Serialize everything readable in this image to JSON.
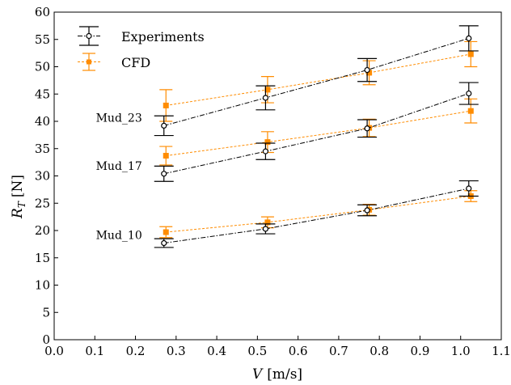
{
  "chart_data": {
    "type": "line",
    "xlabel": "V [m/s]",
    "ylabel": "R_T [N]",
    "ylabel_main": "R",
    "ylabel_sub": "T",
    "ylabel_unit": "[N]",
    "xlabel_main": "V",
    "xlabel_unit": "[m/s]",
    "xlim": [
      0.0,
      1.1
    ],
    "ylim": [
      0,
      60
    ],
    "xticks": [
      "0.0",
      "0.1",
      "0.2",
      "0.3",
      "0.4",
      "0.5",
      "0.6",
      "0.7",
      "0.8",
      "0.9",
      "1.0",
      "1.1"
    ],
    "yticks": [
      "0",
      "5",
      "10",
      "15",
      "20",
      "25",
      "30",
      "35",
      "40",
      "45",
      "50",
      "55",
      "60"
    ],
    "grid": false,
    "legend_position": "top-left",
    "legend": [
      "Experiments",
      "CFD"
    ],
    "colors": {
      "experiments": "#000000",
      "cfd": "#ff8c00"
    },
    "groups": [
      {
        "label": "Mud_10",
        "experiments": {
          "x": [
            0.27,
            0.52,
            0.77,
            1.02
          ],
          "y": [
            17.7,
            20.3,
            23.7,
            27.7
          ],
          "err": [
            0.8,
            0.9,
            1.0,
            1.4
          ]
        },
        "cfd": {
          "x": [
            0.27,
            0.52,
            0.77,
            1.02
          ],
          "y": [
            19.7,
            21.5,
            23.8,
            26.3
          ],
          "err": [
            1.0,
            1.0,
            1.0,
            1.0
          ]
        }
      },
      {
        "label": "Mud_17",
        "experiments": {
          "x": [
            0.27,
            0.52,
            0.77,
            1.02
          ],
          "y": [
            30.4,
            34.5,
            38.7,
            45.1
          ],
          "err": [
            1.4,
            1.5,
            1.6,
            2.0
          ]
        },
        "cfd": {
          "x": [
            0.27,
            0.52,
            0.77,
            1.02
          ],
          "y": [
            33.7,
            36.2,
            38.8,
            41.9
          ],
          "err": [
            1.7,
            1.9,
            1.6,
            2.2
          ]
        }
      },
      {
        "label": "Mud_23",
        "experiments": {
          "x": [
            0.27,
            0.52,
            0.77,
            1.02
          ],
          "y": [
            39.2,
            44.3,
            49.4,
            55.2
          ],
          "err": [
            1.8,
            2.2,
            2.1,
            2.3
          ]
        },
        "cfd": {
          "x": [
            0.27,
            0.52,
            0.77,
            1.02
          ],
          "y": [
            42.9,
            45.8,
            48.9,
            52.3
          ],
          "err": [
            2.9,
            2.4,
            2.2,
            2.3
          ]
        }
      }
    ]
  }
}
